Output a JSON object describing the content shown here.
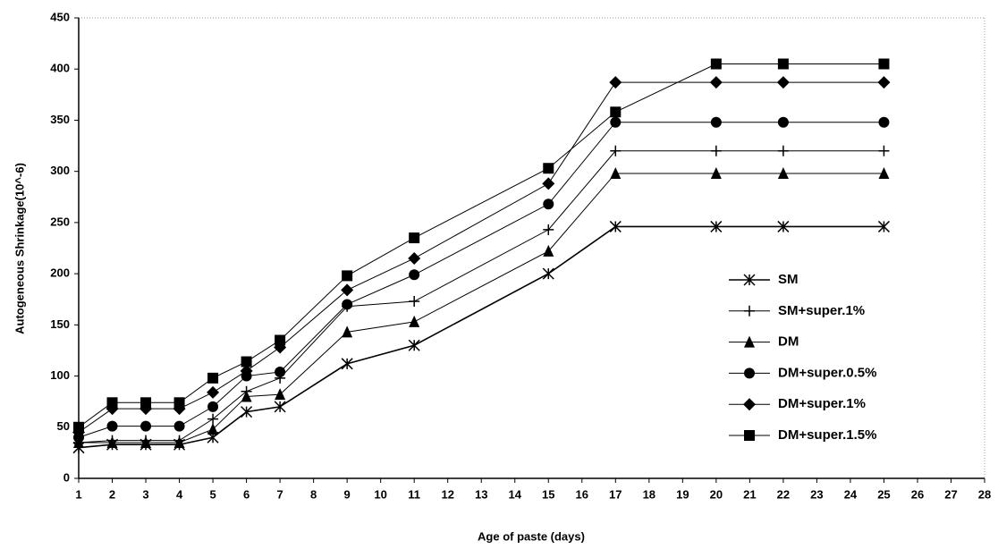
{
  "chart_data": {
    "type": "line",
    "x_label": "Age of paste (days)",
    "y_label": "Autogeneous  Shrinkage(10^-6)",
    "x": [
      1,
      2,
      3,
      4,
      5,
      6,
      7,
      9,
      11,
      15,
      17,
      20,
      22,
      25
    ],
    "series": [
      {
        "name": "SM",
        "color": "#000000",
        "marker": "star",
        "values": [
          30,
          33,
          33,
          33,
          40,
          65,
          70,
          112,
          130,
          200,
          246,
          246,
          246,
          246
        ]
      },
      {
        "name": "SM+super.1%",
        "color": "#000000",
        "marker": "plus",
        "values": [
          35,
          37,
          37,
          37,
          58,
          85,
          98,
          168,
          173,
          243,
          320,
          320,
          320,
          320
        ]
      },
      {
        "name": "DM",
        "color": "#000000",
        "marker": "triangle",
        "values": [
          35,
          35,
          35,
          35,
          48,
          80,
          82,
          143,
          153,
          222,
          298,
          298,
          298,
          298
        ]
      },
      {
        "name": "DM+super.0.5%",
        "color": "#000000",
        "marker": "circle",
        "values": [
          40,
          51,
          51,
          51,
          70,
          100,
          104,
          170,
          199,
          268,
          348,
          348,
          348,
          348
        ]
      },
      {
        "name": "DM+super.1%",
        "color": "#000000",
        "marker": "diamond",
        "values": [
          45,
          68,
          68,
          68,
          84,
          105,
          128,
          184,
          215,
          288,
          387,
          387,
          387,
          387
        ]
      },
      {
        "name": "DM+super.1.5%",
        "color": "#000000",
        "marker": "square",
        "values": [
          50,
          74,
          74,
          74,
          98,
          114,
          135,
          198,
          235,
          303,
          358,
          405,
          405,
          405
        ]
      }
    ],
    "xlim": [
      1,
      28
    ],
    "xticks": [
      1,
      2,
      3,
      4,
      5,
      6,
      7,
      8,
      9,
      10,
      11,
      12,
      13,
      14,
      15,
      16,
      17,
      18,
      19,
      20,
      21,
      22,
      23,
      24,
      25,
      26,
      27,
      28
    ],
    "ylim": [
      0,
      450
    ],
    "yticks": [
      0,
      50,
      100,
      150,
      200,
      250,
      300,
      350,
      400,
      450
    ],
    "grid": false,
    "legend": "right"
  }
}
